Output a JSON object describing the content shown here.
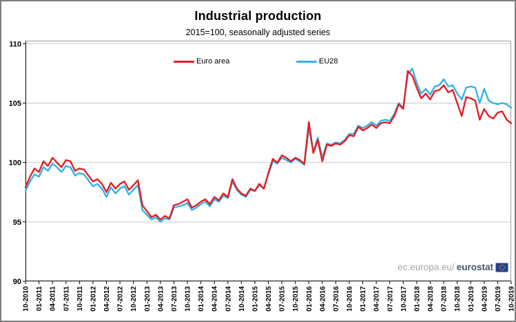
{
  "title": "Industrial production",
  "subtitle": "2015=100, seasonally adjusted series",
  "legend": [
    {
      "label": "Euro area",
      "color": "#e41e25"
    },
    {
      "label": "EU28",
      "color": "#33b3e3"
    }
  ],
  "watermark": {
    "prefix": "ec.europa.eu/",
    "brand": "eurostat",
    "logo": "eu-flag-icon"
  },
  "colors": {
    "euro_area_line": "#e41e25",
    "eu28_line": "#33b3e3",
    "gridline": "#c9c9c9",
    "axis": "#000000",
    "frame": "#9a9a9a"
  },
  "chart_data": {
    "type": "line",
    "title": "Industrial production",
    "subtitle": "2015=100, seasonally adjusted series",
    "xlabel": "",
    "ylabel": "",
    "frequency": "monthly",
    "x_start": "10-2010",
    "x_end": "10-2019",
    "ylim": [
      90,
      110
    ],
    "y_ticks": [
      90,
      95,
      100,
      105,
      110
    ],
    "grid": "horizontal",
    "legend_position": "top-center-inside",
    "x_tick_labels": [
      "10-2010",
      "01-2011",
      "04-2011",
      "07-2011",
      "10-2011",
      "01-2012",
      "04-2012",
      "07-2012",
      "10-2012",
      "01-2013",
      "04-2013",
      "07-2013",
      "10-2013",
      "01-2014",
      "04-2014",
      "07-2014",
      "10-2014",
      "01-2015",
      "04-2015",
      "07-2015",
      "10-2015",
      "01-2016",
      "04-2016",
      "07-2016",
      "10-2016",
      "01-2017",
      "04-2017",
      "07-2017",
      "10-2017",
      "01-2018",
      "04-2018",
      "07-2018",
      "10-2018",
      "01-2019",
      "04-2019",
      "07-2019",
      "10-2019"
    ],
    "x_tick_every_n_months": 3,
    "series": [
      {
        "name": "Euro area",
        "color": "#e41e25",
        "values": [
          97.9,
          98.8,
          99.5,
          99.2,
          100.1,
          99.7,
          100.4,
          100.0,
          99.6,
          100.2,
          100.1,
          99.3,
          99.5,
          99.4,
          98.9,
          98.4,
          98.6,
          98.2,
          97.5,
          98.3,
          97.8,
          98.2,
          98.4,
          97.7,
          98.1,
          98.5,
          96.4,
          95.9,
          95.4,
          95.6,
          95.2,
          95.5,
          95.3,
          96.4,
          96.5,
          96.7,
          96.9,
          96.2,
          96.4,
          96.7,
          96.9,
          96.5,
          97.1,
          96.8,
          97.4,
          97.1,
          98.6,
          97.8,
          97.4,
          97.2,
          97.8,
          97.6,
          98.2,
          97.8,
          99.1,
          100.3,
          100.0,
          100.6,
          100.4,
          100.1,
          100.4,
          100.2,
          99.9,
          103.4,
          100.8,
          101.9,
          100.1,
          101.5,
          101.4,
          101.6,
          101.5,
          101.8,
          102.3,
          102.2,
          103.0,
          102.7,
          102.9,
          103.2,
          102.9,
          103.3,
          103.4,
          103.3,
          103.9,
          104.9,
          104.5,
          107.7,
          107.3,
          106.3,
          105.4,
          105.8,
          105.3,
          106.0,
          106.1,
          106.5,
          105.9,
          106.1,
          105.0,
          103.9,
          105.5,
          105.4,
          105.2,
          103.6,
          104.5,
          103.9,
          103.7,
          104.2,
          104.3,
          103.6,
          103.3
        ]
      },
      {
        "name": "EU28",
        "color": "#33b3e3",
        "values": [
          97.6,
          98.4,
          99.0,
          98.8,
          99.6,
          99.3,
          99.9,
          99.6,
          99.2,
          99.7,
          99.6,
          98.9,
          99.1,
          99.0,
          98.5,
          98.0,
          98.2,
          97.8,
          97.1,
          97.9,
          97.4,
          97.8,
          98.0,
          97.3,
          97.7,
          98.1,
          96.0,
          95.6,
          95.2,
          95.4,
          95.0,
          95.3,
          95.2,
          96.2,
          96.3,
          96.4,
          96.6,
          96.0,
          96.2,
          96.5,
          96.7,
          96.3,
          96.9,
          96.7,
          97.2,
          97.0,
          98.4,
          97.7,
          97.3,
          97.1,
          97.7,
          97.6,
          98.1,
          97.8,
          99.0,
          100.1,
          99.9,
          100.4,
          100.2,
          100.0,
          100.3,
          100.1,
          99.8,
          102.9,
          100.9,
          102.1,
          100.4,
          101.6,
          101.5,
          101.7,
          101.6,
          101.9,
          102.4,
          102.4,
          103.1,
          102.9,
          103.1,
          103.4,
          103.1,
          103.5,
          103.6,
          103.5,
          104.1,
          105.0,
          104.6,
          107.4,
          107.9,
          106.7,
          105.8,
          106.2,
          105.7,
          106.4,
          106.5,
          107.0,
          106.4,
          106.5,
          105.8,
          105.3,
          106.3,
          106.4,
          106.3,
          105.0,
          106.2,
          105.2,
          105.0,
          104.9,
          105.0,
          104.9,
          104.6
        ]
      }
    ]
  }
}
